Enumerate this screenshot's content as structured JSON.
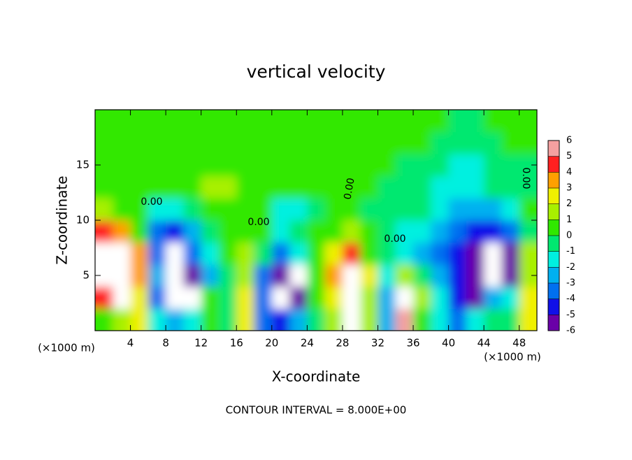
{
  "chart_data": {
    "type": "contour",
    "title": "vertical velocity",
    "x_label": "X-coordinate",
    "y_label": "Z-coordinate",
    "x_unit_label": "(×1000 m)",
    "contour_interval_label": "CONTOUR INTERVAL = 8.000E+00",
    "xlim": [
      0,
      50
    ],
    "ylim": [
      0,
      20
    ],
    "xticks": [
      4,
      8,
      12,
      16,
      20,
      24,
      28,
      32,
      36,
      40,
      44,
      48
    ],
    "yticks": [
      5,
      10,
      15
    ],
    "x": [
      1,
      3,
      5,
      7,
      9,
      11,
      13,
      15,
      17,
      19,
      21,
      23,
      25,
      27,
      29,
      31,
      33,
      35,
      37,
      39,
      41,
      43,
      45,
      47,
      49
    ],
    "y": [
      1,
      3,
      5,
      7,
      9,
      11,
      13,
      15,
      17,
      19
    ],
    "z_values": [
      [
        1,
        2,
        3,
        -1,
        -2,
        -1,
        1,
        0,
        3,
        -3,
        -4,
        -2,
        0,
        2,
        7,
        2,
        -2,
        6,
        1,
        -1,
        -3,
        -1,
        0,
        0,
        3
      ],
      [
        5,
        8,
        3,
        -3,
        -7,
        -8,
        0.5,
        0,
        3,
        -3,
        -7,
        -5,
        1,
        3,
        8,
        2,
        -2,
        7,
        2,
        -1,
        -4,
        -5,
        -2,
        -1,
        3
      ],
      [
        7,
        10,
        4,
        -2,
        -8,
        -5,
        -2,
        0,
        2,
        -3,
        -5,
        -7,
        1,
        4,
        9,
        3,
        -1,
        2,
        0,
        -2,
        -4,
        -6,
        -8,
        -5,
        2
      ],
      [
        7,
        10,
        4,
        -3,
        -8,
        -3,
        -1,
        0.5,
        2,
        0,
        -3,
        -1,
        0.5,
        3,
        5,
        1,
        0,
        -1,
        -2,
        -3,
        -4,
        -6,
        -8,
        -6,
        2
      ],
      [
        5,
        4,
        1,
        -3,
        -4,
        -2,
        0,
        0.5,
        1,
        0.5,
        -1,
        0,
        0.3,
        1,
        2,
        0.5,
        0,
        -1,
        -1,
        -2,
        -3,
        -4,
        -4,
        -3,
        0
      ],
      [
        1.5,
        1,
        0.3,
        -1,
        -1,
        0,
        0.8,
        1,
        0.8,
        0.5,
        -1,
        -1.5,
        0,
        0.3,
        0.3,
        0,
        0,
        -0.5,
        -0.5,
        -1,
        -2,
        -2.5,
        -2,
        -1,
        0.3
      ],
      [
        0.5,
        0.5,
        0.5,
        0.5,
        0.6,
        0.8,
        1.2,
        1.3,
        1,
        0.6,
        0.3,
        0.2,
        0.2,
        0.2,
        0.2,
        0.1,
        0,
        -0.3,
        -0.5,
        -1,
        -1.5,
        -1.5,
        -0.8,
        -0.3,
        0
      ],
      [
        0.3,
        0.3,
        0.3,
        0.4,
        0.5,
        0.6,
        0.8,
        0.8,
        0.7,
        0.5,
        0.3,
        0.2,
        0.2,
        0.2,
        0.2,
        0.2,
        0.1,
        0,
        -0.2,
        -0.5,
        -1,
        -1,
        -0.5,
        -0.2,
        0
      ],
      [
        0.3,
        0.3,
        0.3,
        0.3,
        0.4,
        0.5,
        0.6,
        0.6,
        0.5,
        0.4,
        0.3,
        0.3,
        0.3,
        0.3,
        0.3,
        0.3,
        0.2,
        0.2,
        0.2,
        0,
        -0.2,
        -0.2,
        0,
        0.1,
        0.2
      ],
      [
        0.2,
        0.2,
        0.2,
        0.2,
        0.3,
        0.3,
        0.4,
        0.4,
        0.3,
        0.3,
        0.2,
        0.2,
        0.2,
        0.2,
        0.2,
        0.2,
        0.2,
        0.2,
        0.2,
        0.1,
        0,
        0,
        0.1,
        0.2,
        0.2
      ]
    ],
    "colorbar": {
      "ticks": [
        -6,
        -5,
        -4,
        -3,
        -2,
        -1,
        0,
        1,
        2,
        3,
        4,
        5,
        6
      ],
      "colors": [
        "#6a00a8",
        "#1010e8",
        "#0070f0",
        "#00b0f0",
        "#00f0e0",
        "#00e870",
        "#30e800",
        "#a8f000",
        "#f0f000",
        "#ffa000",
        "#ff2020",
        "#f4a0a0"
      ]
    },
    "contour_labels": [
      {
        "value": 0,
        "label": "0.00"
      },
      {
        "value": 0,
        "label": "0.00"
      },
      {
        "value": 0,
        "label": "0.00"
      },
      {
        "value": 0,
        "label": "0.00"
      },
      {
        "value": 0,
        "label": "0.00"
      }
    ]
  }
}
